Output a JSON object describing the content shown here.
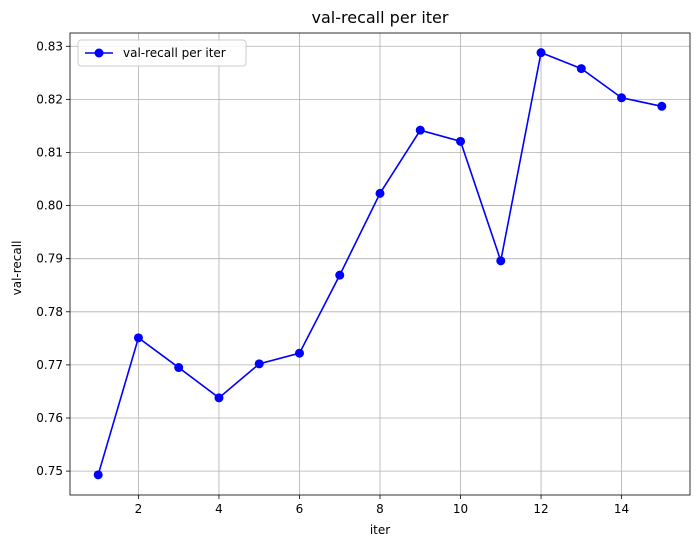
{
  "chart_data": {
    "type": "line",
    "title": "val-recall per iter",
    "xlabel": "iter",
    "ylabel": "val-recall",
    "xlim": [
      0.3,
      15.7
    ],
    "ylim": [
      0.7455,
      0.8325
    ],
    "x_ticks": [
      2,
      4,
      6,
      8,
      10,
      12,
      14
    ],
    "y_ticks": [
      0.75,
      0.76,
      0.77,
      0.78,
      0.79,
      0.8,
      0.81,
      0.82,
      0.83
    ],
    "grid": true,
    "legend_position": "top-left",
    "series": [
      {
        "name": "val-recall per iter",
        "color": "#0000ff",
        "marker": "circle",
        "x": [
          1,
          2,
          3,
          4,
          5,
          6,
          7,
          8,
          9,
          10,
          11,
          12,
          13,
          14,
          15
        ],
        "y": [
          0.7493,
          0.7751,
          0.7695,
          0.7638,
          0.7702,
          0.7722,
          0.7869,
          0.8023,
          0.8142,
          0.8121,
          0.7896,
          0.8288,
          0.8258,
          0.8203,
          0.8187
        ]
      }
    ]
  }
}
